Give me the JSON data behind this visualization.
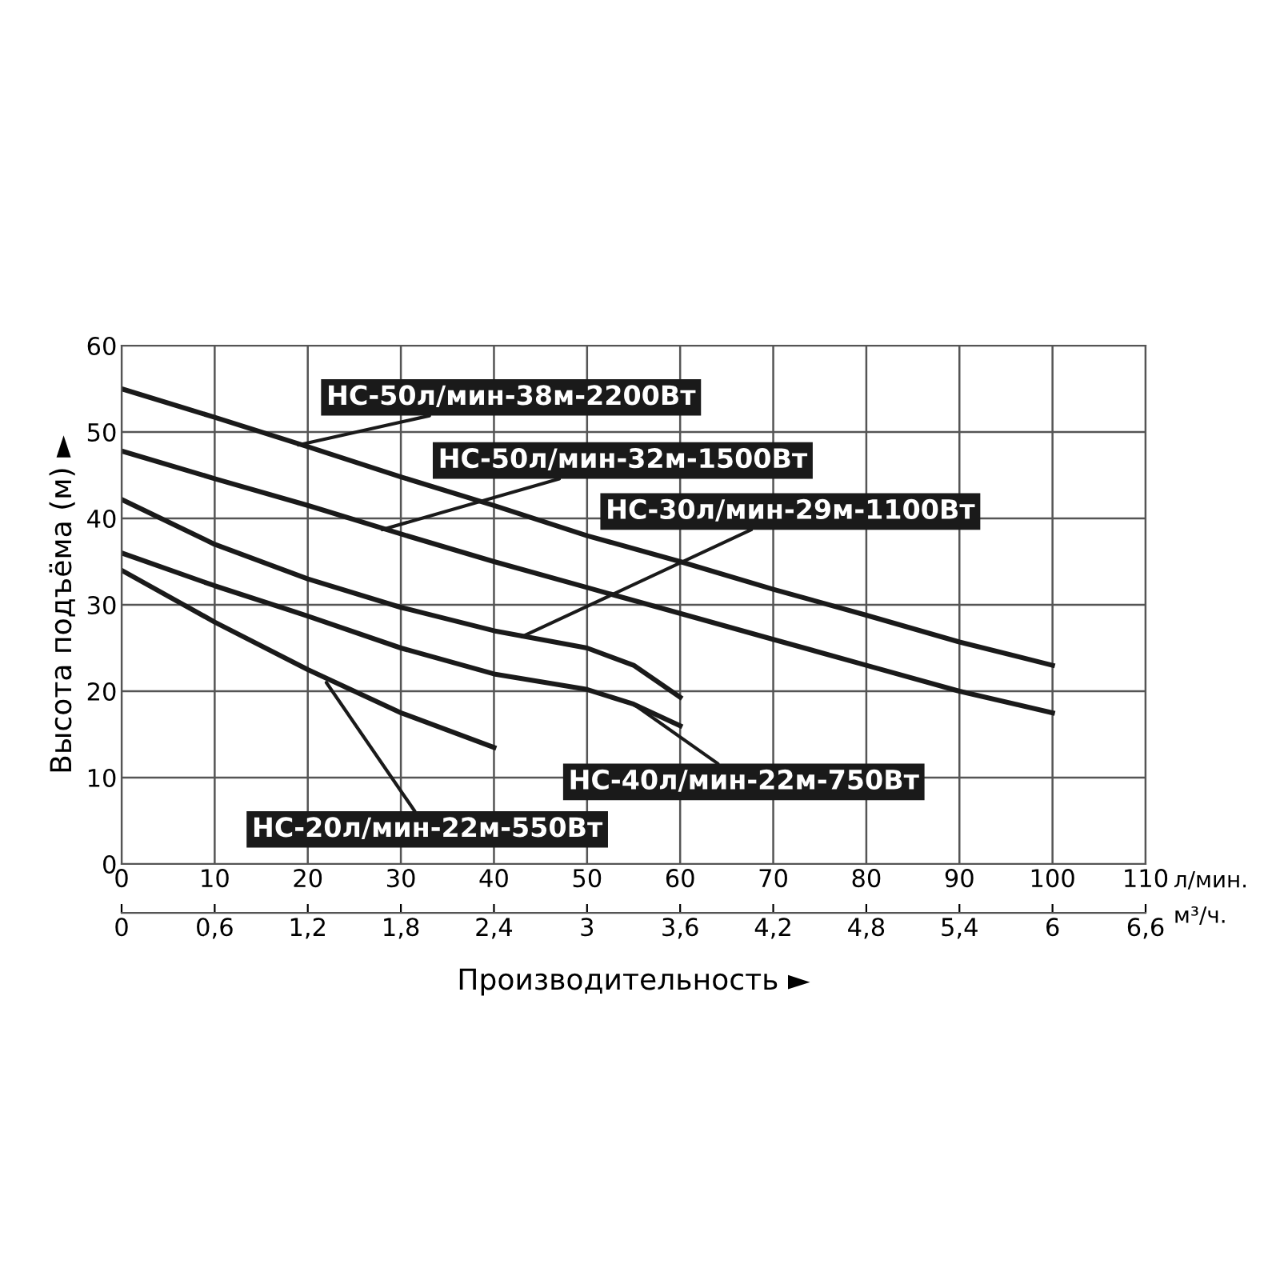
{
  "chart_data": {
    "type": "line",
    "xlabel": "Производительность ►",
    "ylabel": "Высота подъёма (м) ►",
    "xlim": [
      0,
      110
    ],
    "xticks": [
      0,
      10,
      20,
      30,
      40,
      50,
      60,
      70,
      80,
      90,
      100,
      110
    ],
    "x2lim": [
      0,
      6.6
    ],
    "x2ticks": [
      0,
      {
        "value": 0.6,
        "label": "0,6"
      },
      {
        "value": 1.2,
        "label": "1,2"
      },
      {
        "value": 1.8,
        "label": "1,8"
      },
      {
        "value": 2.4,
        "label": "2,4"
      },
      3,
      {
        "value": 3.6,
        "label": "3,6"
      },
      {
        "value": 4.2,
        "label": "4,2"
      },
      {
        "value": 4.8,
        "label": "4,8"
      },
      {
        "value": 5.4,
        "label": "5,4"
      },
      6,
      {
        "value": 6.6,
        "label": "6,6"
      }
    ],
    "ylim": [
      0,
      60
    ],
    "yticks": [
      0,
      10,
      20,
      30,
      40,
      50,
      60
    ],
    "grid": true,
    "series": [
      {
        "color": "#1a1a1a",
        "x": [
          0,
          10,
          20,
          30,
          40,
          50,
          60,
          70,
          80,
          90,
          100
        ],
        "values": [
          55,
          51.7,
          48.3,
          44.8,
          41.5,
          38,
          35,
          31.8,
          28.8,
          25.7,
          23
        ]
      },
      {
        "color": "#1a1a1a",
        "x": [
          0,
          10,
          20,
          30,
          40,
          50,
          60,
          70,
          80,
          90,
          100
        ],
        "values": [
          47.8,
          44.6,
          41.5,
          38.2,
          35,
          32,
          29,
          26,
          23,
          20,
          17.5
        ]
      },
      {
        "color": "#1a1a1a",
        "x": [
          0,
          10,
          20,
          30,
          40,
          50,
          55,
          60
        ],
        "values": [
          42.2,
          37,
          33,
          29.7,
          27,
          25,
          23,
          19.3
        ]
      },
      {
        "color": "#1a1a1a",
        "x": [
          0,
          10,
          20,
          30,
          40,
          50,
          55,
          60
        ],
        "values": [
          36,
          32.2,
          28.7,
          25,
          22,
          20.2,
          18.5,
          16
        ]
      },
      {
        "color": "#1a1a1a",
        "x": [
          0,
          10,
          20,
          30,
          40
        ],
        "values": [
          34,
          28,
          22.5,
          17.5,
          13.5
        ]
      }
    ],
    "annotations": [
      {
        "text": "НС-50л/мин-38м-2200Вт",
        "x": 19,
        "y": 48.5
      },
      {
        "text": "НС-50л/мин-32м-1500Вт",
        "x": 28,
        "y": 38.7
      },
      {
        "text": "НС-30л/мин-29м-1100Вт",
        "x": 43,
        "y": 26.3
      },
      {
        "text": "НС-40л/мин-22м-750Вт",
        "x": 55,
        "y": 18.5
      },
      {
        "text": "НС-20л/мин-22м-550Вт",
        "x": 22,
        "y": 21
      },
      "л/мин.",
      "м³/ч."
    ]
  }
}
